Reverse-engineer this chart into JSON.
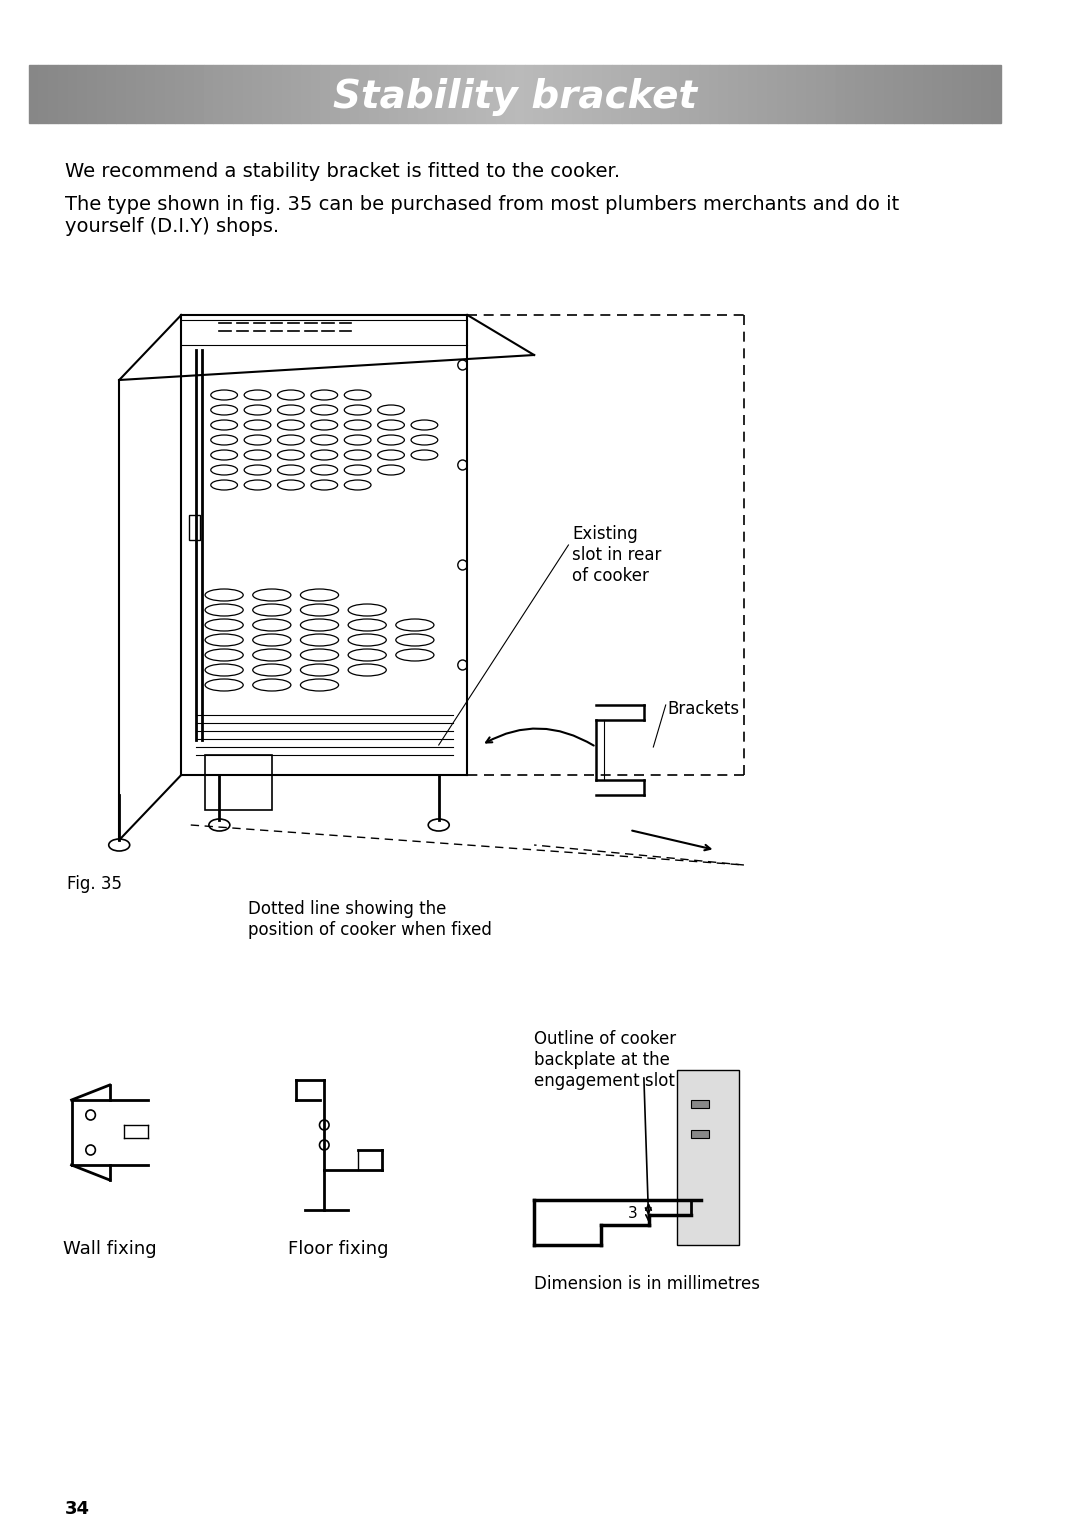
{
  "title": "Stability bracket",
  "title_bg_gradient": [
    "#888888",
    "#cccccc",
    "#888888"
  ],
  "title_color": "#ffffff",
  "title_fontsize": 28,
  "body_text_1": "We recommend a stability bracket is fitted to the cooker.",
  "body_text_2": "The type shown in fig. 35 can be purchased from most plumbers merchants and do it\nyourself (D.I.Y) shops.",
  "body_fontsize": 14,
  "label_existing_slot": "Existing\nslot in rear\nof cooker",
  "label_brackets": "Brackets",
  "label_dotted_line": "Dotted line showing the\nposition of cooker when fixed",
  "label_fig": "Fig. 35",
  "label_outline": "Outline of cooker\nbackplate at the\nengagement slot",
  "label_wall": "Wall fixing",
  "label_floor": "Floor fixing",
  "label_dimension": "Dimension is in millimetres",
  "label_3": "3",
  "page_number": "34",
  "bg_color": "#ffffff",
  "line_color": "#000000",
  "dashed_color": "#333333"
}
